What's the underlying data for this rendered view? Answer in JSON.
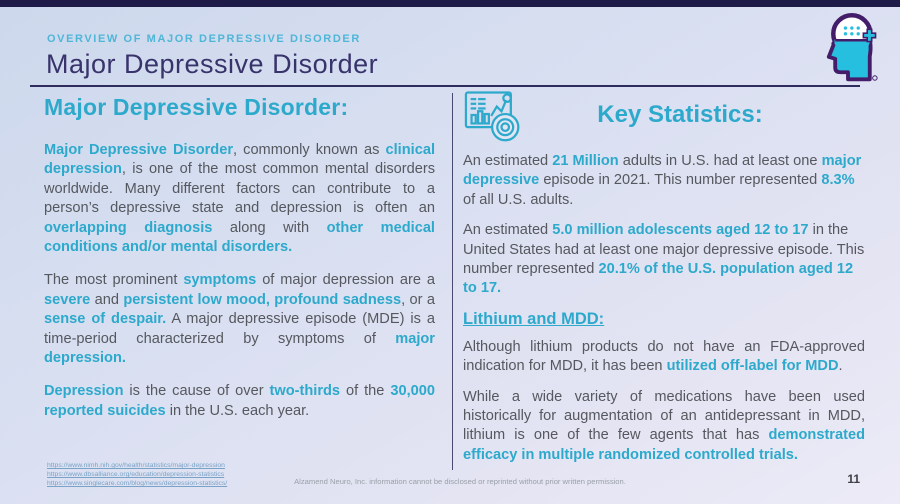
{
  "slide": {
    "eyebrow": "OVERVIEW OF MAJOR DEPRESSIVE DISORDER",
    "title": "Major Depressive Disorder",
    "page_number": "11",
    "footer": "Alzamend Neuro, Inc. information cannot be disclosed or reprinted without prior written permission.",
    "colors": {
      "accent": "#2da9cc",
      "navy": "#38336b",
      "body": "#55585e",
      "logo_cyan": "#27bfdf",
      "logo_purple": "#441d6a"
    }
  },
  "left": {
    "heading": "Major Depressive Disorder:",
    "paragraphs": [
      {
        "runs": [
          {
            "t": "Major Depressive Disorder",
            "s": "accent"
          },
          {
            "t": ", commonly known as ",
            "s": "plain"
          },
          {
            "t": "clinical depression",
            "s": "accent"
          },
          {
            "t": ", is one of the most common mental disorders worldwide. Many different factors can contribute to a person’s depressive state and depression is often an ",
            "s": "plain"
          },
          {
            "t": "overlapping diagnosis",
            "s": "accent"
          },
          {
            "t": " along with ",
            "s": "plain"
          },
          {
            "t": "other medical conditions and/or mental disorders.",
            "s": "accent"
          }
        ]
      },
      {
        "runs": [
          {
            "t": "The most prominent ",
            "s": "plain"
          },
          {
            "t": "symptoms",
            "s": "accent"
          },
          {
            "t": " of major depression are a ",
            "s": "plain"
          },
          {
            "t": "severe",
            "s": "accent"
          },
          {
            "t": " and ",
            "s": "plain"
          },
          {
            "t": "persistent low mood, profound sadness",
            "s": "accent"
          },
          {
            "t": ", or a ",
            "s": "plain"
          },
          {
            "t": "sense of despair.",
            "s": "accent"
          },
          {
            "t": " A major depressive episode (MDE) is a time-period characterized by symptoms of ",
            "s": "plain"
          },
          {
            "t": "major depression.",
            "s": "accent"
          }
        ]
      },
      {
        "runs": [
          {
            "t": "Depression",
            "s": "accent"
          },
          {
            "t": " is the cause of over ",
            "s": "plain"
          },
          {
            "t": "two-thirds",
            "s": "accent"
          },
          {
            "t": " of the ",
            "s": "plain"
          },
          {
            "t": "30,000 reported suicides",
            "s": "accent"
          },
          {
            "t": " in the U.S. each year.",
            "s": "plain"
          }
        ]
      }
    ],
    "links": [
      "https://www.nimh.nih.gov/health/statistics/major-depression",
      "https://www.dbsalliance.org/education/depression-statistics",
      "https://www.singlecare.com/blog/news/depression-statistics/"
    ]
  },
  "right": {
    "heading": "Key Statistics:",
    "paragraphs_top": [
      {
        "runs": [
          {
            "t": "An estimated ",
            "s": "plain"
          },
          {
            "t": "21 Million",
            "s": "accent"
          },
          {
            "t": " adults in U.S. had at least one ",
            "s": "plain"
          },
          {
            "t": "major depressive",
            "s": "accent"
          },
          {
            "t": " episode in 2021. This number represented ",
            "s": "plain"
          },
          {
            "t": "8.3%",
            "s": "accent"
          },
          {
            "t": " of all U.S. adults.",
            "s": "plain"
          }
        ]
      },
      {
        "runs": [
          {
            "t": "An estimated ",
            "s": "plain"
          },
          {
            "t": "5.0 million adolescents aged 12 to 17",
            "s": "accent"
          },
          {
            "t": " in the United States had at least one major depressive episode. This number represented ",
            "s": "plain"
          },
          {
            "t": "20.1% of the U.S. population aged 12 to 17.",
            "s": "accent"
          }
        ]
      }
    ],
    "subheading": "Lithium and MDD:",
    "paragraphs_bottom": [
      {
        "runs": [
          {
            "t": "Although lithium products do not have an FDA-approved indication for MDD, it has been ",
            "s": "plain"
          },
          {
            "t": "utilized off-label for MDD",
            "s": "accent"
          },
          {
            "t": ".",
            "s": "plain"
          }
        ]
      },
      {
        "runs": [
          {
            "t": "While a wide variety of medications have been used historically for augmentation of an antidepressant in MDD, lithium is one of the few agents that has ",
            "s": "plain"
          },
          {
            "t": "demonstrated efficacy in multiple randomized controlled trials.",
            "s": "accent"
          }
        ]
      }
    ]
  }
}
